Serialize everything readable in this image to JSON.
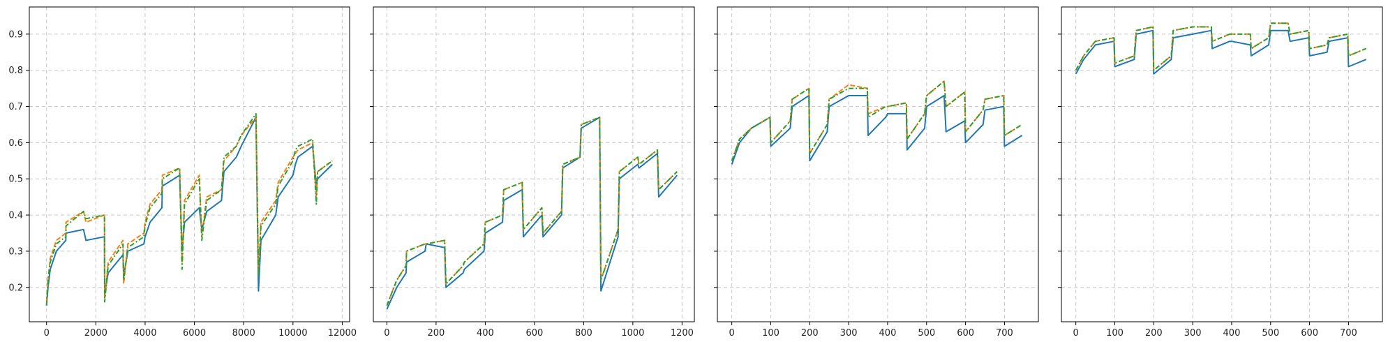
{
  "colors": {
    "series_blue": "#1f77b4",
    "series_orange": "#ff7f0e",
    "series_green": "#2ca02c"
  },
  "chart_data": [
    {
      "type": "line",
      "title": "",
      "xlabel": "",
      "ylabel": "",
      "xlim": [
        -700,
        12300
      ],
      "ylim": [
        0.105,
        0.975
      ],
      "xticks": [
        0,
        2000,
        4000,
        6000,
        8000,
        10000,
        12000
      ],
      "xtick_labels": [
        "0",
        "2000",
        "4000",
        "6000",
        "8000",
        "10000",
        "12000"
      ],
      "yticks": [
        0.2,
        0.3,
        0.4,
        0.5,
        0.6,
        0.7,
        0.8,
        0.9
      ],
      "ytick_labels": [
        "0.2",
        "0.3",
        "0.4",
        "0.5",
        "0.6",
        "0.7",
        "0.8",
        "0.9"
      ],
      "grid": true,
      "series": [
        {
          "style": "solid",
          "color": "series_blue",
          "x": [
            0,
            60,
            150,
            400,
            780,
            790,
            1500,
            1600,
            2350,
            2360,
            2500,
            3100,
            3130,
            3300,
            3950,
            4000,
            4200,
            4680,
            4700,
            5400,
            5500,
            5600,
            6200,
            6300,
            6500,
            7100,
            7200,
            7700,
            7900,
            8500,
            8600,
            8700,
            9300,
            9400,
            10000,
            10100,
            10200,
            10800,
            10950,
            11000,
            11600
          ],
          "y": [
            0.15,
            0.2,
            0.25,
            0.3,
            0.33,
            0.35,
            0.36,
            0.33,
            0.34,
            0.18,
            0.24,
            0.29,
            0.23,
            0.3,
            0.32,
            0.34,
            0.38,
            0.42,
            0.48,
            0.51,
            0.3,
            0.38,
            0.42,
            0.36,
            0.41,
            0.44,
            0.52,
            0.56,
            0.59,
            0.67,
            0.19,
            0.33,
            0.4,
            0.45,
            0.51,
            0.54,
            0.56,
            0.59,
            0.48,
            0.5,
            0.54
          ]
        },
        {
          "style": "dashed",
          "color": "series_orange",
          "x": [
            0,
            60,
            150,
            400,
            780,
            790,
            1500,
            1600,
            2350,
            2360,
            2500,
            3100,
            3130,
            3300,
            3950,
            4000,
            4200,
            4680,
            4700,
            5400,
            5500,
            5600,
            6200,
            6300,
            6500,
            7100,
            7200,
            7700,
            7900,
            8500,
            8600,
            8700,
            9300,
            9400,
            10000,
            10100,
            10200,
            10800,
            10950,
            11000,
            11600
          ],
          "y": [
            0.16,
            0.22,
            0.28,
            0.33,
            0.35,
            0.38,
            0.41,
            0.38,
            0.4,
            0.17,
            0.27,
            0.33,
            0.21,
            0.32,
            0.35,
            0.38,
            0.43,
            0.47,
            0.51,
            0.53,
            0.27,
            0.44,
            0.51,
            0.34,
            0.45,
            0.47,
            0.55,
            0.59,
            0.62,
            0.67,
            0.24,
            0.38,
            0.44,
            0.49,
            0.56,
            0.57,
            0.58,
            0.6,
            0.45,
            0.52,
            0.55
          ]
        },
        {
          "style": "dashdot",
          "color": "series_green",
          "x": [
            0,
            60,
            150,
            400,
            780,
            790,
            1500,
            1600,
            2350,
            2360,
            2500,
            3100,
            3130,
            3300,
            3950,
            4000,
            4200,
            4680,
            4700,
            5400,
            5500,
            5600,
            6200,
            6300,
            6500,
            7100,
            7200,
            7700,
            7900,
            8500,
            8600,
            8700,
            9300,
            9400,
            10000,
            10100,
            10200,
            10800,
            10950,
            11000,
            11600
          ],
          "y": [
            0.15,
            0.22,
            0.27,
            0.32,
            0.34,
            0.37,
            0.41,
            0.39,
            0.4,
            0.16,
            0.26,
            0.32,
            0.22,
            0.31,
            0.34,
            0.37,
            0.42,
            0.46,
            0.5,
            0.53,
            0.25,
            0.43,
            0.5,
            0.33,
            0.44,
            0.47,
            0.56,
            0.59,
            0.62,
            0.68,
            0.23,
            0.37,
            0.43,
            0.48,
            0.55,
            0.58,
            0.59,
            0.61,
            0.43,
            0.52,
            0.55
          ]
        }
      ]
    },
    {
      "type": "line",
      "title": "",
      "xlabel": "",
      "ylabel": "",
      "xlim": [
        -55,
        1250
      ],
      "ylim": [
        0.105,
        0.975
      ],
      "xticks": [
        0,
        200,
        400,
        600,
        800,
        1000,
        1200
      ],
      "xtick_labels": [
        "0",
        "200",
        "400",
        "600",
        "800",
        "1000",
        "1200"
      ],
      "yticks": [
        0.2,
        0.3,
        0.4,
        0.5,
        0.6,
        0.7,
        0.8,
        0.9
      ],
      "ytick_labels": [
        "0.2",
        "0.3",
        "0.4",
        "0.5",
        "0.6",
        "0.7",
        "0.8",
        "0.9"
      ],
      "grid": true,
      "series": [
        {
          "style": "solid",
          "color": "series_blue",
          "x": [
            0,
            40,
            78,
            80,
            155,
            160,
            235,
            240,
            310,
            315,
            395,
            400,
            470,
            475,
            550,
            555,
            630,
            635,
            710,
            715,
            785,
            790,
            865,
            870,
            940,
            945,
            1020,
            1025,
            1100,
            1105,
            1180
          ],
          "y": [
            0.14,
            0.2,
            0.24,
            0.27,
            0.3,
            0.32,
            0.31,
            0.2,
            0.24,
            0.25,
            0.3,
            0.35,
            0.38,
            0.44,
            0.47,
            0.34,
            0.4,
            0.34,
            0.4,
            0.53,
            0.56,
            0.64,
            0.67,
            0.19,
            0.34,
            0.5,
            0.54,
            0.53,
            0.57,
            0.45,
            0.51
          ]
        },
        {
          "style": "dashed",
          "color": "series_orange",
          "x": [
            0,
            40,
            78,
            80,
            155,
            160,
            235,
            240,
            310,
            315,
            395,
            400,
            470,
            475,
            550,
            555,
            630,
            635,
            710,
            715,
            785,
            790,
            865,
            870,
            940,
            945,
            1020,
            1025,
            1100,
            1105,
            1180
          ],
          "y": [
            0.15,
            0.22,
            0.26,
            0.3,
            0.32,
            0.32,
            0.33,
            0.21,
            0.26,
            0.27,
            0.32,
            0.38,
            0.4,
            0.47,
            0.49,
            0.36,
            0.42,
            0.35,
            0.41,
            0.54,
            0.56,
            0.65,
            0.67,
            0.22,
            0.36,
            0.52,
            0.56,
            0.54,
            0.58,
            0.47,
            0.52
          ]
        },
        {
          "style": "dashdot",
          "color": "series_green",
          "x": [
            0,
            40,
            78,
            80,
            155,
            160,
            235,
            240,
            310,
            315,
            395,
            400,
            470,
            475,
            550,
            555,
            630,
            635,
            710,
            715,
            785,
            790,
            865,
            870,
            940,
            945,
            1020,
            1025,
            1100,
            1105,
            1180
          ],
          "y": [
            0.15,
            0.22,
            0.26,
            0.3,
            0.32,
            0.32,
            0.33,
            0.21,
            0.26,
            0.27,
            0.32,
            0.38,
            0.4,
            0.47,
            0.49,
            0.36,
            0.42,
            0.35,
            0.41,
            0.54,
            0.56,
            0.65,
            0.67,
            0.22,
            0.36,
            0.52,
            0.56,
            0.54,
            0.58,
            0.47,
            0.52
          ]
        }
      ]
    },
    {
      "type": "line",
      "title": "",
      "xlabel": "",
      "ylabel": "",
      "xlim": [
        -37,
        787
      ],
      "ylim": [
        0.105,
        0.975
      ],
      "xticks": [
        0,
        100,
        200,
        300,
        400,
        500,
        600,
        700
      ],
      "xtick_labels": [
        "0",
        "100",
        "200",
        "300",
        "400",
        "500",
        "600",
        "700"
      ],
      "yticks": [
        0.2,
        0.3,
        0.4,
        0.5,
        0.6,
        0.7,
        0.8,
        0.9
      ],
      "ytick_labels": [
        "0.2",
        "0.3",
        "0.4",
        "0.5",
        "0.6",
        "0.7",
        "0.8",
        "0.9"
      ],
      "grid": true,
      "series": [
        {
          "style": "solid",
          "color": "series_blue",
          "x": [
            0,
            20,
            50,
            98,
            100,
            150,
            155,
            198,
            200,
            245,
            250,
            300,
            348,
            350,
            395,
            400,
            448,
            450,
            495,
            500,
            545,
            550,
            598,
            600,
            645,
            650,
            698,
            700,
            745
          ],
          "y": [
            0.54,
            0.6,
            0.64,
            0.67,
            0.59,
            0.64,
            0.7,
            0.73,
            0.55,
            0.63,
            0.7,
            0.73,
            0.73,
            0.62,
            0.67,
            0.68,
            0.68,
            0.58,
            0.64,
            0.7,
            0.73,
            0.63,
            0.66,
            0.6,
            0.65,
            0.69,
            0.7,
            0.59,
            0.62
          ]
        },
        {
          "style": "dashed",
          "color": "series_orange",
          "x": [
            0,
            20,
            50,
            98,
            100,
            150,
            155,
            198,
            200,
            245,
            250,
            300,
            348,
            350,
            395,
            400,
            448,
            450,
            495,
            500,
            545,
            550,
            598,
            600,
            645,
            650,
            698,
            700,
            745
          ],
          "y": [
            0.55,
            0.61,
            0.64,
            0.67,
            0.6,
            0.66,
            0.72,
            0.75,
            0.57,
            0.65,
            0.72,
            0.76,
            0.75,
            0.68,
            0.7,
            0.7,
            0.71,
            0.61,
            0.68,
            0.73,
            0.77,
            0.7,
            0.74,
            0.63,
            0.69,
            0.72,
            0.73,
            0.62,
            0.65
          ]
        },
        {
          "style": "dashdot",
          "color": "series_green",
          "x": [
            0,
            20,
            50,
            98,
            100,
            150,
            155,
            198,
            200,
            245,
            250,
            300,
            348,
            350,
            395,
            400,
            448,
            450,
            495,
            500,
            545,
            550,
            598,
            600,
            645,
            650,
            698,
            700,
            745
          ],
          "y": [
            0.55,
            0.61,
            0.64,
            0.67,
            0.6,
            0.66,
            0.72,
            0.75,
            0.57,
            0.65,
            0.72,
            0.75,
            0.75,
            0.67,
            0.7,
            0.7,
            0.71,
            0.61,
            0.68,
            0.73,
            0.77,
            0.7,
            0.74,
            0.63,
            0.69,
            0.72,
            0.73,
            0.62,
            0.65
          ]
        }
      ]
    },
    {
      "type": "line",
      "title": "",
      "xlabel": "",
      "ylabel": "",
      "xlim": [
        -37,
        787
      ],
      "ylim": [
        0.105,
        0.975
      ],
      "xticks": [
        0,
        100,
        200,
        300,
        400,
        500,
        600,
        700
      ],
      "xtick_labels": [
        "0",
        "100",
        "200",
        "300",
        "400",
        "500",
        "600",
        "700"
      ],
      "yticks": [
        0.2,
        0.3,
        0.4,
        0.5,
        0.6,
        0.7,
        0.8,
        0.9
      ],
      "ytick_labels": [
        "0.2",
        "0.3",
        "0.4",
        "0.5",
        "0.6",
        "0.7",
        "0.8",
        "0.9"
      ],
      "grid": true,
      "series": [
        {
          "style": "solid",
          "color": "series_blue",
          "x": [
            0,
            20,
            50,
            98,
            100,
            150,
            155,
            198,
            200,
            245,
            250,
            300,
            348,
            350,
            395,
            400,
            448,
            450,
            495,
            500,
            545,
            550,
            598,
            600,
            645,
            650,
            698,
            700,
            745
          ],
          "y": [
            0.79,
            0.83,
            0.87,
            0.88,
            0.81,
            0.83,
            0.9,
            0.91,
            0.79,
            0.83,
            0.89,
            0.9,
            0.91,
            0.86,
            0.88,
            0.88,
            0.87,
            0.84,
            0.87,
            0.91,
            0.91,
            0.88,
            0.89,
            0.84,
            0.85,
            0.88,
            0.89,
            0.81,
            0.83
          ]
        },
        {
          "style": "dashed",
          "color": "series_orange",
          "x": [
            0,
            20,
            50,
            98,
            100,
            150,
            155,
            198,
            200,
            245,
            250,
            300,
            348,
            350,
            395,
            400,
            448,
            450,
            495,
            500,
            545,
            550,
            598,
            600,
            645,
            650,
            698,
            700,
            745
          ],
          "y": [
            0.8,
            0.84,
            0.88,
            0.89,
            0.82,
            0.84,
            0.91,
            0.92,
            0.8,
            0.84,
            0.91,
            0.92,
            0.92,
            0.88,
            0.9,
            0.9,
            0.9,
            0.86,
            0.89,
            0.93,
            0.93,
            0.9,
            0.91,
            0.86,
            0.87,
            0.89,
            0.9,
            0.84,
            0.86
          ]
        },
        {
          "style": "dashdot",
          "color": "series_green",
          "x": [
            0,
            20,
            50,
            98,
            100,
            150,
            155,
            198,
            200,
            245,
            250,
            300,
            348,
            350,
            395,
            400,
            448,
            450,
            495,
            500,
            545,
            550,
            598,
            600,
            645,
            650,
            698,
            700,
            745
          ],
          "y": [
            0.8,
            0.84,
            0.88,
            0.89,
            0.82,
            0.84,
            0.91,
            0.92,
            0.8,
            0.84,
            0.91,
            0.92,
            0.92,
            0.88,
            0.9,
            0.9,
            0.9,
            0.86,
            0.89,
            0.93,
            0.93,
            0.9,
            0.91,
            0.86,
            0.87,
            0.89,
            0.9,
            0.84,
            0.86
          ]
        }
      ]
    }
  ]
}
